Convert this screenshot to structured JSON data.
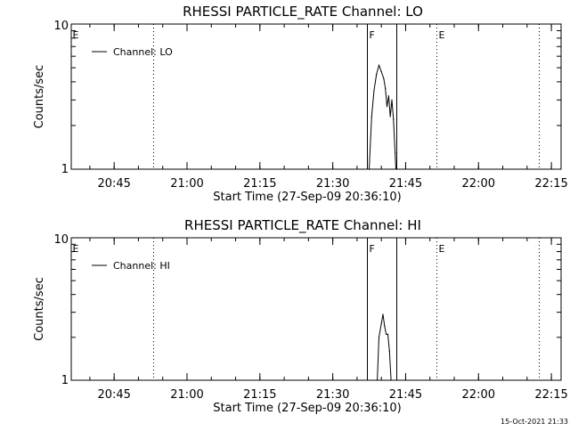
{
  "timestamp": "15-Oct-2021 21:33",
  "chart_data": [
    {
      "type": "line",
      "title": "RHESSI PARTICLE_RATE Channel: LO",
      "xlabel": "Start Time (27-Sep-09 20:36:10)",
      "ylabel": "Counts/sec",
      "xlim": [
        "20:36:10",
        "22:17:00"
      ],
      "ylim": [
        1,
        10
      ],
      "yscale": "log",
      "xticks": [
        "20:45",
        "21:00",
        "21:15",
        "21:30",
        "21:45",
        "22:00",
        "22:15"
      ],
      "yticks": [
        {
          "value": 1,
          "label": "1"
        },
        {
          "value": 10,
          "label": "10"
        }
      ],
      "legend": {
        "label": "Channel: LO",
        "position": "top-left"
      },
      "grid": false,
      "flags": [
        {
          "label": "E",
          "time": "20:36:10",
          "style": "none"
        },
        {
          "label": "",
          "time": "20:53:00",
          "style": "dotted"
        },
        {
          "label": "F",
          "time": "21:37:00",
          "style": "solid"
        },
        {
          "label": "",
          "time": "21:43:10",
          "style": "solid"
        },
        {
          "label": "E",
          "time": "21:51:20",
          "style": "dotted"
        },
        {
          "label": "",
          "time": "22:12:30",
          "style": "dotted"
        }
      ],
      "series": [
        {
          "name": "Channel: LO",
          "x": [
            "21:37:30",
            "21:38:00",
            "21:38:30",
            "21:39:00",
            "21:39:30",
            "21:40:00",
            "21:40:30",
            "21:40:50",
            "21:41:10",
            "21:41:30",
            "21:41:50",
            "21:42:10",
            "21:42:30",
            "21:42:50",
            "21:43:00"
          ],
          "y": [
            1.0,
            2.3,
            3.5,
            4.5,
            5.2,
            4.7,
            4.2,
            3.6,
            2.7,
            3.2,
            2.3,
            3.0,
            2.2,
            1.3,
            1.0
          ]
        }
      ]
    },
    {
      "type": "line",
      "title": "RHESSI PARTICLE_RATE Channel: HI",
      "xlabel": "Start Time (27-Sep-09 20:36:10)",
      "ylabel": "Counts/sec",
      "xlim": [
        "20:36:10",
        "22:17:00"
      ],
      "ylim": [
        1,
        10
      ],
      "yscale": "log",
      "xticks": [
        "20:45",
        "21:00",
        "21:15",
        "21:30",
        "21:45",
        "22:00",
        "22:15"
      ],
      "yticks": [
        {
          "value": 1,
          "label": "1"
        },
        {
          "value": 10,
          "label": "10"
        }
      ],
      "legend": {
        "label": "Channel: HI",
        "position": "top-left"
      },
      "grid": false,
      "flags": [
        {
          "label": "E",
          "time": "20:36:10",
          "style": "none"
        },
        {
          "label": "",
          "time": "20:53:00",
          "style": "dotted"
        },
        {
          "label": "F",
          "time": "21:37:00",
          "style": "solid"
        },
        {
          "label": "",
          "time": "21:43:10",
          "style": "solid"
        },
        {
          "label": "E",
          "time": "21:51:20",
          "style": "dotted"
        },
        {
          "label": "",
          "time": "22:12:30",
          "style": "dotted"
        }
      ],
      "series": [
        {
          "name": "Channel: HI",
          "x": [
            "21:39:10",
            "21:39:30",
            "21:40:00",
            "21:40:20",
            "21:40:40",
            "21:41:00",
            "21:41:20",
            "21:41:40",
            "21:42:00"
          ],
          "y": [
            1.0,
            2.0,
            2.5,
            2.9,
            2.4,
            2.1,
            2.1,
            1.6,
            1.0
          ]
        }
      ]
    }
  ]
}
